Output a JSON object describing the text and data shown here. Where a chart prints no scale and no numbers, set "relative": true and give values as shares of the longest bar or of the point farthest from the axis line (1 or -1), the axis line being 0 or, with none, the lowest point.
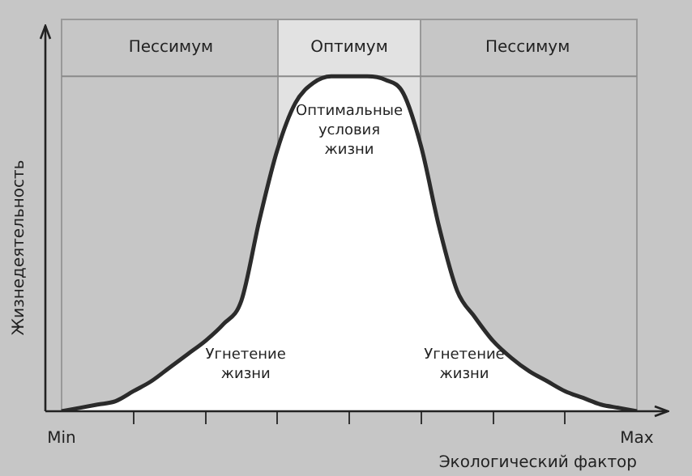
{
  "chart_data": {
    "type": "area",
    "relative": true,
    "xlabel": "Экологический фактор",
    "ylabel": "Жизнедеятельность",
    "categories": [
      "Min",
      null,
      null,
      null,
      null,
      null,
      null,
      null,
      null,
      null,
      null,
      null,
      null,
      null,
      null,
      null,
      null,
      null,
      null,
      null,
      null,
      null,
      null,
      null,
      null,
      null,
      null,
      null,
      null,
      null,
      null,
      null,
      "Max"
    ],
    "series": [
      {
        "color": "#2b2b2b",
        "values": [
          0,
          0.01,
          0.02,
          0.03,
          0.06,
          0.09,
          0.13,
          0.17,
          0.21,
          0.26,
          0.33,
          0.57,
          0.78,
          0.92,
          0.98,
          1,
          1,
          1,
          0.99,
          0.95,
          0.79,
          0.55,
          0.36,
          0.28,
          0.21,
          0.16,
          0.12,
          0.09,
          0.06,
          0.04,
          0.02,
          0.01,
          0
        ]
      }
    ],
    "ref_lines": [
      {
        "axis": "y",
        "value": 1,
        "color": "#8a8a8a"
      }
    ],
    "annotations": [
      "Пессимум",
      "Оптимум",
      "Пессимум",
      "Оптимальные\nусловия\nжизни",
      "Угнетение\nжизни",
      "Угнетение\nжизни"
    ],
    "grid": "x",
    "legend": false
  }
}
